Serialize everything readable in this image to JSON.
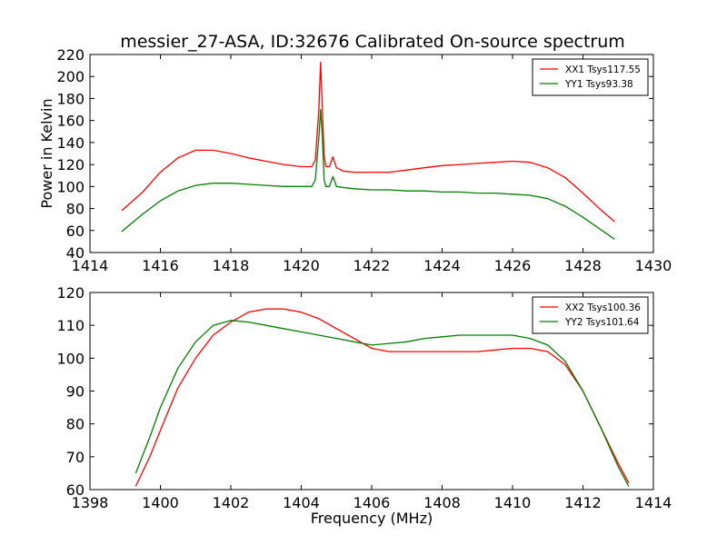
{
  "title": "messier_27-ASA, ID:32676 Calibrated On-source spectrum",
  "colors": {
    "series_red": "#ff0000",
    "series_green": "#007f00",
    "frame": "#000000"
  },
  "chart_data": [
    {
      "type": "line",
      "title": "messier_27-ASA, ID:32676 Calibrated On-source spectrum",
      "xlabel": "",
      "ylabel": "Power in Kelvin",
      "xlim": [
        1414,
        1430
      ],
      "ylim": [
        40,
        220
      ],
      "xticks": [
        "1414",
        "1416",
        "1418",
        "1420",
        "1422",
        "1424",
        "1426",
        "1428",
        "1430"
      ],
      "yticks": [
        "40",
        "60",
        "80",
        "100",
        "120",
        "140",
        "160",
        "180",
        "200",
        "220"
      ],
      "grid": false,
      "legend_position": "top-right",
      "series": [
        {
          "name": "XX1 Tsys117.55",
          "color": "#ff0000",
          "x": [
            1414.9,
            1415.5,
            1416.0,
            1416.5,
            1417.0,
            1417.5,
            1418.0,
            1418.5,
            1419.0,
            1419.5,
            1420.0,
            1420.3,
            1420.4,
            1420.5,
            1420.55,
            1420.6,
            1420.65,
            1420.7,
            1420.8,
            1420.9,
            1421.0,
            1421.2,
            1421.5,
            1422.0,
            1422.5,
            1423.0,
            1423.5,
            1424.0,
            1424.5,
            1425.0,
            1425.5,
            1426.0,
            1426.5,
            1427.0,
            1427.5,
            1428.0,
            1428.5,
            1428.9
          ],
          "y": [
            78,
            95,
            113,
            126,
            133,
            133,
            130,
            126,
            123,
            120,
            118,
            118,
            124,
            170,
            213,
            170,
            128,
            118,
            118,
            127,
            117,
            114,
            113,
            113,
            113,
            115,
            117,
            119,
            120,
            121,
            122,
            123,
            122,
            117,
            108,
            94,
            79,
            68
          ]
        },
        {
          "name": "YY1 Tsys93.38",
          "color": "#007f00",
          "x": [
            1414.9,
            1415.5,
            1416.0,
            1416.5,
            1417.0,
            1417.5,
            1418.0,
            1418.5,
            1419.0,
            1419.5,
            1420.0,
            1420.3,
            1420.4,
            1420.5,
            1420.55,
            1420.6,
            1420.65,
            1420.7,
            1420.8,
            1420.9,
            1421.0,
            1421.2,
            1421.5,
            1422.0,
            1422.5,
            1423.0,
            1423.5,
            1424.0,
            1424.5,
            1425.0,
            1425.5,
            1426.0,
            1426.5,
            1427.0,
            1427.5,
            1428.0,
            1428.5,
            1428.9
          ],
          "y": [
            59,
            75,
            87,
            96,
            101,
            103,
            103,
            102,
            101,
            100,
            100,
            100,
            106,
            145,
            170,
            145,
            106,
            100,
            100,
            109,
            100,
            99,
            98,
            97,
            97,
            96,
            96,
            95,
            95,
            94,
            94,
            93,
            92,
            89,
            82,
            72,
            61,
            52
          ]
        }
      ]
    },
    {
      "type": "line",
      "title": "",
      "xlabel": "Frequency (MHz)",
      "ylabel": "",
      "xlim": [
        1398,
        1414
      ],
      "ylim": [
        60,
        120
      ],
      "xticks": [
        "1398",
        "1400",
        "1402",
        "1404",
        "1406",
        "1408",
        "1410",
        "1412",
        "1414"
      ],
      "yticks": [
        "60",
        "70",
        "80",
        "90",
        "100",
        "110",
        "120"
      ],
      "grid": false,
      "legend_position": "top-right",
      "series": [
        {
          "name": "XX2 Tsys100.36",
          "color": "#ff0000",
          "x": [
            1399.3,
            1399.7,
            1400.0,
            1400.5,
            1401.0,
            1401.5,
            1402.0,
            1402.5,
            1403.0,
            1403.5,
            1404.0,
            1404.5,
            1405.0,
            1405.5,
            1406.0,
            1406.5,
            1407.0,
            1407.5,
            1408.0,
            1408.5,
            1409.0,
            1409.5,
            1410.0,
            1410.5,
            1411.0,
            1411.5,
            1412.0,
            1412.5,
            1413.0,
            1413.3
          ],
          "y": [
            61,
            70,
            78,
            91,
            100,
            107,
            111,
            114,
            115,
            115,
            114,
            112,
            109,
            106,
            103,
            102,
            102,
            102,
            102,
            102,
            102,
            102.5,
            103,
            103,
            102,
            98,
            90,
            79,
            68,
            62
          ]
        },
        {
          "name": "YY2 Tsys101.64",
          "color": "#007f00",
          "x": [
            1399.3,
            1399.7,
            1400.0,
            1400.5,
            1401.0,
            1401.5,
            1402.0,
            1402.5,
            1403.0,
            1403.5,
            1404.0,
            1404.5,
            1405.0,
            1405.5,
            1406.0,
            1406.5,
            1407.0,
            1407.5,
            1408.0,
            1408.5,
            1409.0,
            1409.5,
            1410.0,
            1410.5,
            1411.0,
            1411.5,
            1412.0,
            1412.5,
            1413.0,
            1413.3
          ],
          "y": [
            65,
            76,
            85,
            97,
            105,
            110,
            111.5,
            111,
            110,
            109,
            108,
            107,
            106,
            105,
            104,
            104.5,
            105,
            106,
            106.5,
            107,
            107,
            107,
            107,
            106,
            104,
            99,
            90,
            79,
            67,
            61
          ]
        }
      ]
    }
  ]
}
